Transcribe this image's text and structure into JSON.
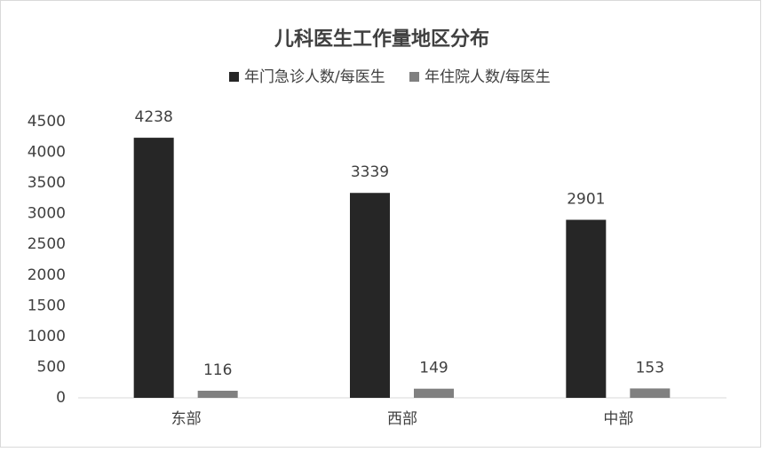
{
  "chart_data": {
    "type": "bar",
    "title": "儿科医生工作量地区分布",
    "categories": [
      "东部",
      "西部",
      "中部"
    ],
    "series": [
      {
        "name": "年门急诊人数/每医生",
        "color": "#262626",
        "values": [
          4238,
          3339,
          2901
        ]
      },
      {
        "name": "年住院人数/每医生",
        "color": "#808080",
        "values": [
          116,
          149,
          153
        ]
      }
    ],
    "ylim": [
      0,
      4500
    ],
    "yticks": [
      0,
      500,
      1000,
      1500,
      2000,
      2500,
      3000,
      3500,
      4000,
      4500
    ],
    "grid": false,
    "legend": "top"
  }
}
